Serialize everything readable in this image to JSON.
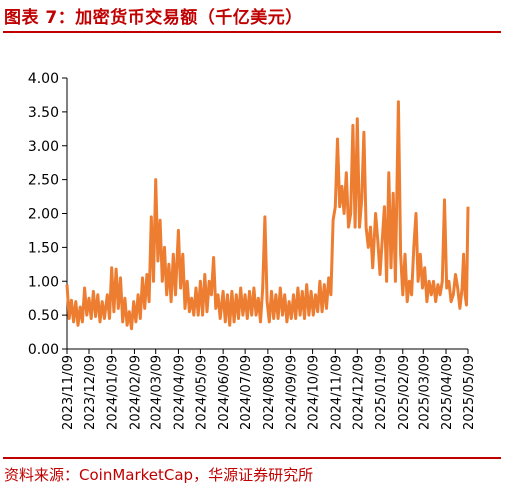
{
  "header": {
    "title": "图表 7：加密货币交易额（千亿美元）"
  },
  "footer": {
    "source": "资料来源：CoinMarketCap，华源证券研究所"
  },
  "chart_data": {
    "type": "line",
    "title": "加密货币交易额（千亿美元）",
    "xlabel": "",
    "ylabel": "",
    "ylim": [
      0,
      4
    ],
    "yticks": [
      "0.00",
      "0.50",
      "1.00",
      "1.50",
      "2.00",
      "2.50",
      "3.00",
      "3.50",
      "4.00"
    ],
    "x_range": [
      "2023-11-09",
      "2025-05-09"
    ],
    "xticks": [
      "2023/11/09",
      "2023/12/09",
      "2024/01/09",
      "2024/02/09",
      "2024/03/09",
      "2024/04/09",
      "2024/05/09",
      "2024/06/09",
      "2024/07/09",
      "2024/08/09",
      "2024/09/09",
      "2024/10/09",
      "2024/11/09",
      "2024/12/09",
      "2025/01/09",
      "2025/02/09",
      "2025/03/09",
      "2025/04/09",
      "2025/05/09"
    ],
    "grid": false,
    "legend": "none",
    "color": "#ed7d31",
    "series": [
      {
        "points": [
          [
            "2023-11-09",
            0.95
          ],
          [
            "2023-11-12",
            0.45
          ],
          [
            "2023-11-15",
            0.72
          ],
          [
            "2023-11-18",
            0.4
          ],
          [
            "2023-11-21",
            0.7
          ],
          [
            "2023-11-24",
            0.35
          ],
          [
            "2023-11-27",
            0.62
          ],
          [
            "2023-11-30",
            0.4
          ],
          [
            "2023-12-03",
            0.9
          ],
          [
            "2023-12-06",
            0.5
          ],
          [
            "2023-12-09",
            0.75
          ],
          [
            "2023-12-12",
            0.45
          ],
          [
            "2023-12-15",
            0.85
          ],
          [
            "2023-12-18",
            0.48
          ],
          [
            "2023-12-21",
            0.8
          ],
          [
            "2023-12-24",
            0.4
          ],
          [
            "2023-12-27",
            0.7
          ],
          [
            "2023-12-30",
            0.45
          ],
          [
            "2024-01-03",
            0.8
          ],
          [
            "2024-01-06",
            0.45
          ],
          [
            "2024-01-09",
            1.2
          ],
          [
            "2024-01-12",
            0.55
          ],
          [
            "2024-01-15",
            1.18
          ],
          [
            "2024-01-18",
            0.6
          ],
          [
            "2024-01-21",
            1.05
          ],
          [
            "2024-01-24",
            0.4
          ],
          [
            "2024-01-27",
            0.75
          ],
          [
            "2024-01-30",
            0.35
          ],
          [
            "2024-02-02",
            0.55
          ],
          [
            "2024-02-05",
            0.3
          ],
          [
            "2024-02-08",
            0.7
          ],
          [
            "2024-02-11",
            0.4
          ],
          [
            "2024-02-14",
            0.8
          ],
          [
            "2024-02-17",
            0.45
          ],
          [
            "2024-02-20",
            1.05
          ],
          [
            "2024-02-23",
            0.6
          ],
          [
            "2024-02-26",
            1.1
          ],
          [
            "2024-02-29",
            0.7
          ],
          [
            "2024-03-03",
            1.95
          ],
          [
            "2024-03-06",
            1.0
          ],
          [
            "2024-03-09",
            2.5
          ],
          [
            "2024-03-12",
            1.3
          ],
          [
            "2024-03-15",
            1.9
          ],
          [
            "2024-03-18",
            1.0
          ],
          [
            "2024-03-21",
            1.5
          ],
          [
            "2024-03-24",
            0.8
          ],
          [
            "2024-03-27",
            1.25
          ],
          [
            "2024-03-30",
            0.7
          ],
          [
            "2024-04-02",
            1.4
          ],
          [
            "2024-04-05",
            0.8
          ],
          [
            "2024-04-09",
            1.75
          ],
          [
            "2024-04-12",
            0.9
          ],
          [
            "2024-04-15",
            1.4
          ],
          [
            "2024-04-18",
            0.6
          ],
          [
            "2024-04-21",
            1.0
          ],
          [
            "2024-04-24",
            0.55
          ],
          [
            "2024-04-27",
            0.75
          ],
          [
            "2024-04-30",
            0.5
          ],
          [
            "2024-05-03",
            0.9
          ],
          [
            "2024-05-06",
            0.5
          ],
          [
            "2024-05-09",
            1.0
          ],
          [
            "2024-05-12",
            0.5
          ],
          [
            "2024-05-15",
            1.1
          ],
          [
            "2024-05-18",
            0.55
          ],
          [
            "2024-05-21",
            1.0
          ],
          [
            "2024-05-24",
            0.8
          ],
          [
            "2024-05-27",
            1.35
          ],
          [
            "2024-05-30",
            0.6
          ],
          [
            "2024-06-02",
            0.8
          ],
          [
            "2024-06-05",
            0.45
          ],
          [
            "2024-06-09",
            0.85
          ],
          [
            "2024-06-12",
            0.4
          ],
          [
            "2024-06-15",
            0.8
          ],
          [
            "2024-06-18",
            0.35
          ],
          [
            "2024-06-21",
            0.85
          ],
          [
            "2024-06-24",
            0.4
          ],
          [
            "2024-06-27",
            0.8
          ],
          [
            "2024-06-30",
            0.45
          ],
          [
            "2024-07-03",
            0.9
          ],
          [
            "2024-07-06",
            0.5
          ],
          [
            "2024-07-09",
            0.8
          ],
          [
            "2024-07-12",
            0.45
          ],
          [
            "2024-07-15",
            0.85
          ],
          [
            "2024-07-18",
            0.5
          ],
          [
            "2024-07-21",
            0.9
          ],
          [
            "2024-07-24",
            0.5
          ],
          [
            "2024-07-27",
            0.75
          ],
          [
            "2024-07-30",
            0.4
          ],
          [
            "2024-08-02",
            0.9
          ],
          [
            "2024-08-05",
            1.95
          ],
          [
            "2024-08-08",
            0.7
          ],
          [
            "2024-08-11",
            0.4
          ],
          [
            "2024-08-14",
            0.85
          ],
          [
            "2024-08-17",
            0.45
          ],
          [
            "2024-08-20",
            0.8
          ],
          [
            "2024-08-23",
            0.45
          ],
          [
            "2024-08-26",
            0.9
          ],
          [
            "2024-08-29",
            0.5
          ],
          [
            "2024-09-01",
            0.8
          ],
          [
            "2024-09-04",
            0.4
          ],
          [
            "2024-09-07",
            0.7
          ],
          [
            "2024-09-10",
            0.45
          ],
          [
            "2024-09-13",
            0.8
          ],
          [
            "2024-09-16",
            0.45
          ],
          [
            "2024-09-19",
            0.9
          ],
          [
            "2024-09-22",
            0.5
          ],
          [
            "2024-09-25",
            0.85
          ],
          [
            "2024-09-28",
            0.45
          ],
          [
            "2024-10-01",
            0.95
          ],
          [
            "2024-10-04",
            0.5
          ],
          [
            "2024-10-07",
            0.85
          ],
          [
            "2024-10-10",
            0.5
          ],
          [
            "2024-10-13",
            0.8
          ],
          [
            "2024-10-16",
            0.55
          ],
          [
            "2024-10-19",
            1.0
          ],
          [
            "2024-10-22",
            0.55
          ],
          [
            "2024-10-25",
            0.95
          ],
          [
            "2024-10-28",
            0.6
          ],
          [
            "2024-10-31",
            1.05
          ],
          [
            "2024-11-03",
            0.8
          ],
          [
            "2024-11-06",
            1.9
          ],
          [
            "2024-11-09",
            2.1
          ],
          [
            "2024-11-12",
            3.1
          ],
          [
            "2024-11-15",
            2.1
          ],
          [
            "2024-11-18",
            2.4
          ],
          [
            "2024-11-21",
            2.0
          ],
          [
            "2024-11-24",
            2.6
          ],
          [
            "2024-11-27",
            1.8
          ],
          [
            "2024-11-30",
            2.0
          ],
          [
            "2024-12-03",
            3.3
          ],
          [
            "2024-12-06",
            1.8
          ],
          [
            "2024-12-09",
            3.4
          ],
          [
            "2024-12-12",
            1.8
          ],
          [
            "2024-12-15",
            2.2
          ],
          [
            "2024-12-18",
            3.2
          ],
          [
            "2024-12-21",
            1.8
          ],
          [
            "2024-12-24",
            1.5
          ],
          [
            "2024-12-27",
            1.8
          ],
          [
            "2024-12-30",
            1.2
          ],
          [
            "2025-01-03",
            2.0
          ],
          [
            "2025-01-06",
            1.6
          ],
          [
            "2025-01-09",
            1.1
          ],
          [
            "2025-01-12",
            1.6
          ],
          [
            "2025-01-15",
            2.1
          ],
          [
            "2025-01-18",
            1.0
          ],
          [
            "2025-01-21",
            2.6
          ],
          [
            "2025-01-24",
            1.2
          ],
          [
            "2025-01-27",
            2.3
          ],
          [
            "2025-01-30",
            1.0
          ],
          [
            "2025-02-03",
            3.65
          ],
          [
            "2025-02-06",
            1.4
          ],
          [
            "2025-02-09",
            0.8
          ],
          [
            "2025-02-12",
            1.4
          ],
          [
            "2025-02-15",
            0.7
          ],
          [
            "2025-02-18",
            1.0
          ],
          [
            "2025-02-21",
            0.8
          ],
          [
            "2025-02-24",
            1.5
          ],
          [
            "2025-02-27",
            2.0
          ],
          [
            "2025-03-02",
            1.0
          ],
          [
            "2025-03-05",
            1.4
          ],
          [
            "2025-03-08",
            0.9
          ],
          [
            "2025-03-11",
            1.2
          ],
          [
            "2025-03-14",
            0.7
          ],
          [
            "2025-03-17",
            1.0
          ],
          [
            "2025-03-20",
            0.8
          ],
          [
            "2025-03-23",
            1.0
          ],
          [
            "2025-03-26",
            0.7
          ],
          [
            "2025-03-29",
            0.95
          ],
          [
            "2025-04-01",
            0.8
          ],
          [
            "2025-04-04",
            1.0
          ],
          [
            "2025-04-07",
            2.2
          ],
          [
            "2025-04-10",
            0.9
          ],
          [
            "2025-04-13",
            1.0
          ],
          [
            "2025-04-16",
            0.7
          ],
          [
            "2025-04-19",
            0.8
          ],
          [
            "2025-04-22",
            1.1
          ],
          [
            "2025-04-25",
            0.9
          ],
          [
            "2025-04-28",
            0.6
          ],
          [
            "2025-05-01",
            0.9
          ],
          [
            "2025-05-03",
            1.4
          ],
          [
            "2025-05-05",
            0.8
          ],
          [
            "2025-05-07",
            0.65
          ],
          [
            "2025-05-09",
            2.1
          ]
        ]
      }
    ]
  }
}
